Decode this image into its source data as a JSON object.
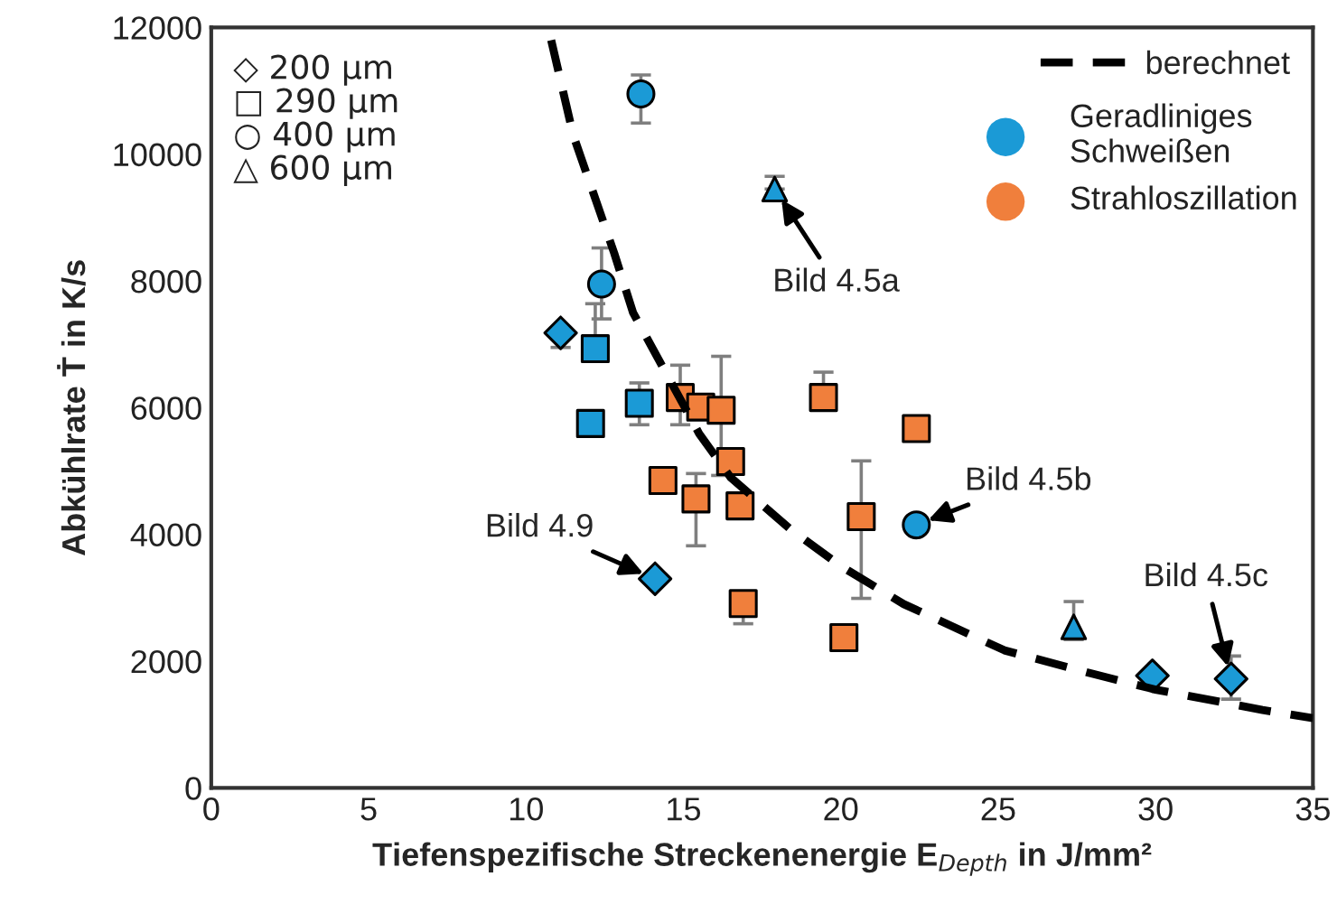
{
  "chart_data": {
    "type": "scatter",
    "xlabel": "Tiefenspezifische Streckenenergie E$_{Depth}$ in J/mm²",
    "ylabel": "Abkühlrate Ṫ in K/s",
    "xlim": [
      0,
      35
    ],
    "xticks": [
      0,
      5,
      10,
      15,
      20,
      25,
      30,
      35
    ],
    "ylim": [
      0,
      12000
    ],
    "yticks": [
      0,
      2000,
      4000,
      6000,
      8000,
      10000,
      12000
    ],
    "grid": false,
    "legend": "top right",
    "series": [
      {
        "color": "#1b9ad6",
        "marker": "diamond",
        "x": [
          11.1,
          14.1,
          29.9,
          32.4
        ],
        "values": [
          7180,
          3300,
          1770,
          1720
        ],
        "errors": [
          [
            6950,
            7180
          ],
          null,
          null,
          [
            1400,
            2080
          ]
        ]
      },
      {
        "color": "#1b9ad6",
        "marker": "square",
        "x": [
          12.2,
          12.05,
          13.6
        ],
        "values": [
          6930,
          5750,
          6070
        ],
        "errors": [
          [
            6930,
            7640
          ],
          null,
          [
            5730,
            6390
          ]
        ]
      },
      {
        "color": "#1b9ad6",
        "marker": "circle",
        "x": [
          12.4,
          13.65,
          22.4
        ],
        "values": [
          7950,
          10950,
          4150
        ],
        "errors": [
          [
            7400,
            8520
          ],
          [
            10490,
            11250
          ],
          null
        ]
      },
      {
        "color": "#1b9ad6",
        "marker": "triangle",
        "x": [
          17.9,
          27.4
        ],
        "values": [
          9450,
          2540
        ],
        "errors": [
          [
            9450,
            9650
          ],
          [
            2340,
            2940
          ]
        ]
      },
      {
        "color": "#f07f3c",
        "marker": "square",
        "x": [
          14.9,
          15.55,
          16.2,
          16.5,
          14.35,
          15.4,
          16.8,
          16.9,
          19.45,
          22.4,
          20.65,
          20.1
        ],
        "values": [
          6160,
          6010,
          5960,
          5150,
          4850,
          4560,
          4450,
          2910,
          6160,
          5670,
          4280,
          2370
        ],
        "errors": [
          [
            5730,
            6670
          ],
          null,
          [
            4930,
            6810
          ],
          null,
          null,
          [
            3820,
            4960
          ],
          null,
          [
            2590,
            2910
          ],
          [
            6160,
            6560
          ],
          null,
          [
            2990,
            5160
          ],
          null
        ]
      },
      {
        "type": "line",
        "name": "berechnet",
        "color": "#000000",
        "line_style": "dashed",
        "marker": "none",
        "x": [
          10.8,
          11.5,
          12.8,
          13.4,
          14.5,
          15.5,
          16.5,
          18.4,
          20,
          22,
          25.2,
          28,
          30,
          33.4,
          35
        ],
        "values": [
          11800,
          10300,
          8440,
          7500,
          6500,
          5590,
          4900,
          4080,
          3500,
          2900,
          2170,
          1800,
          1550,
          1230,
          1100
        ]
      }
    ],
    "annotations": [
      "◇ 200 µm",
      "□ 290 µm",
      "○ 400 µm",
      "△ 600 µm",
      "● Geradliniges Schweißen",
      "● Strahloszillation",
      {
        "text": "Bild 4.9",
        "x": 14.1,
        "y": 3300
      },
      {
        "text": "Bild 4.5a",
        "x": 17.9,
        "y": 9450
      },
      {
        "text": "Bild 4.5b",
        "x": 22.4,
        "y": 4150
      },
      {
        "text": "Bild 4.5c",
        "x": 32.4,
        "y": 1720
      }
    ]
  }
}
